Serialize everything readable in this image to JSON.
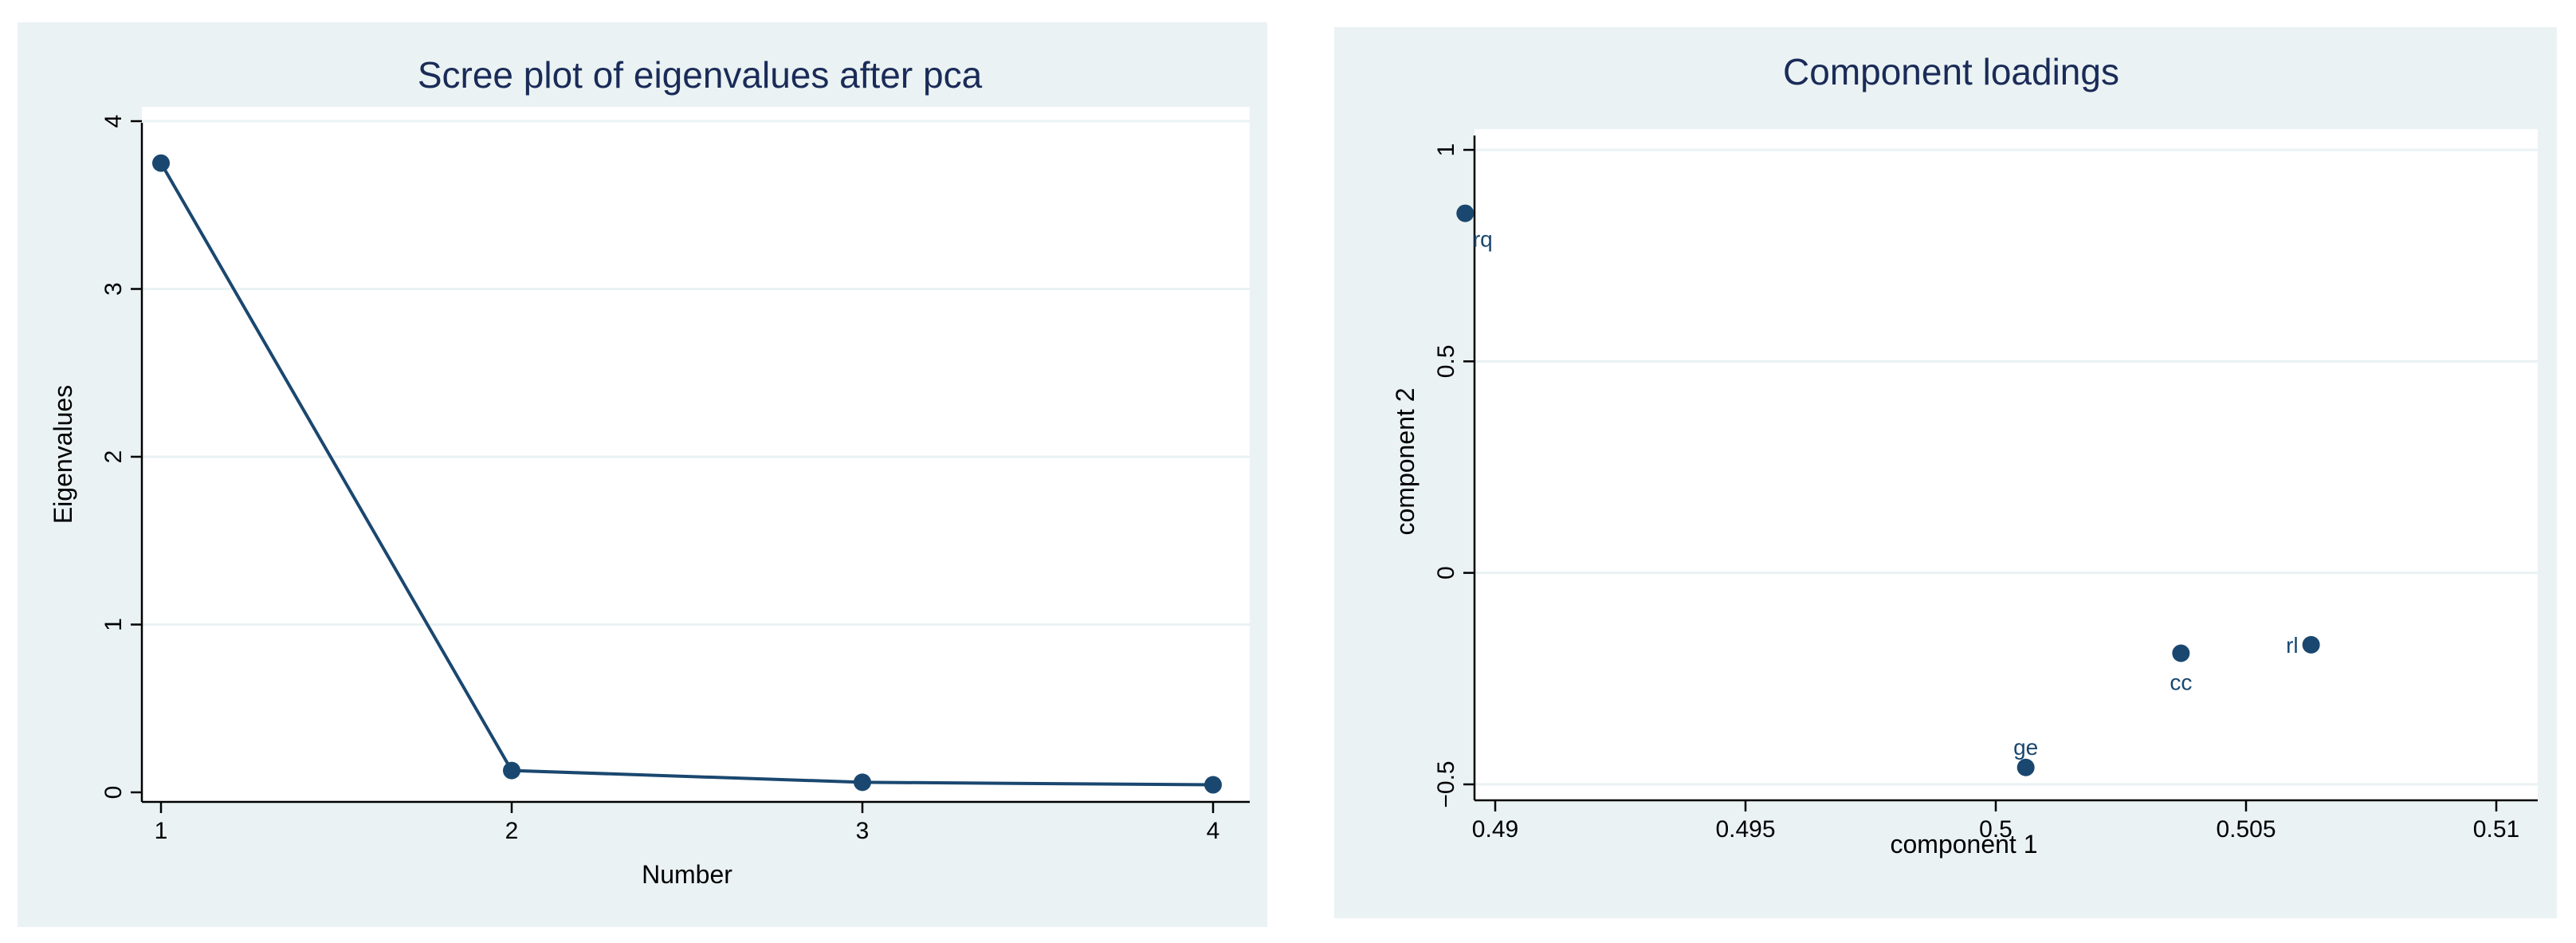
{
  "chart_data": [
    {
      "type": "line",
      "title": "Scree plot of eigenvalues after pca",
      "xlabel": "Number",
      "ylabel": "Eigenvalues",
      "x": [
        1,
        2,
        3,
        4
      ],
      "y": [
        3.75,
        0.13,
        0.06,
        0.045
      ],
      "xticks": [
        "1",
        "2",
        "3",
        "4"
      ],
      "yticks": [
        "0",
        "1",
        "2",
        "3",
        "4"
      ],
      "xlim": [
        1,
        4
      ],
      "ylim": [
        0,
        4
      ],
      "grid": "horizontal",
      "colors": {
        "series": "#1a476f",
        "panel": "#eaf2f3",
        "plot": "#ffffff",
        "grid": "#eaf2f3",
        "title": "#1a2b58"
      }
    },
    {
      "type": "scatter",
      "title": "Component loadings",
      "xlabel": "component 1",
      "ylabel": "component 2",
      "points": [
        {
          "label": "rq",
          "x": 0.4894,
          "y": 0.85
        },
        {
          "label": "cc",
          "x": 0.5037,
          "y": -0.19
        },
        {
          "label": "rl",
          "x": 0.5063,
          "y": -0.17
        },
        {
          "label": "ge",
          "x": 0.5006,
          "y": -0.46
        }
      ],
      "xticks": [
        "0.49",
        "0.495",
        "0.5",
        "0.505",
        "0.51"
      ],
      "yticks": [
        "−0.5",
        "0",
        "0.5",
        "1"
      ],
      "xlim": [
        0.49,
        0.51
      ],
      "ylim": [
        -0.5,
        1
      ],
      "grid": "horizontal",
      "colors": {
        "series": "#1a476f",
        "panel": "#eaf2f3",
        "plot": "#ffffff",
        "grid": "#eaf2f3",
        "title": "#1a2b58"
      }
    }
  ]
}
